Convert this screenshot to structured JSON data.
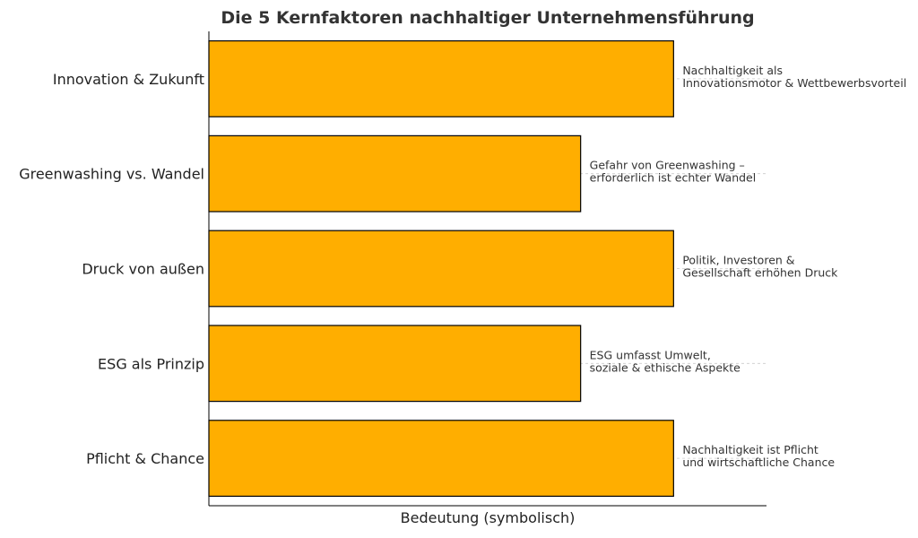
{
  "chart_data": {
    "type": "bar",
    "orientation": "horizontal",
    "title": "Die 5 Kernfaktoren nachhaltiger Unternehmensführung",
    "xlabel": "Bedeutung (symbolisch)",
    "ylabel": "",
    "categories": [
      "Innovation & Zukunft",
      "Greenwashing vs. Wandel",
      "Druck von außen",
      "ESG als Prinzip",
      "Pflicht & Chance"
    ],
    "values": [
      5,
      4,
      5,
      4,
      5
    ],
    "xlim": [
      0,
      6
    ],
    "annotations": [
      [
        "Nachhaltigkeit als",
        "Innovationsmotor & Wettbewerbsvorteil"
      ],
      [
        "Gefahr von Greenwashing –",
        "erforderlich ist echter Wandel"
      ],
      [
        "Politik, Investoren &",
        "Gesellschaft erhöhen Druck"
      ],
      [
        "ESG umfasst Umwelt,",
        "soziale & ethische Aspekte"
      ],
      [
        "Nachhaltigkeit ist Pflicht",
        "und wirtschaftliche Chance"
      ]
    ],
    "grid": "horizontal dashed",
    "x_ticks_shown": false,
    "colors": {
      "bar": "#FFAE00",
      "bar_edge": "#000000",
      "grid": "#cccccc",
      "text": "#333333"
    }
  }
}
